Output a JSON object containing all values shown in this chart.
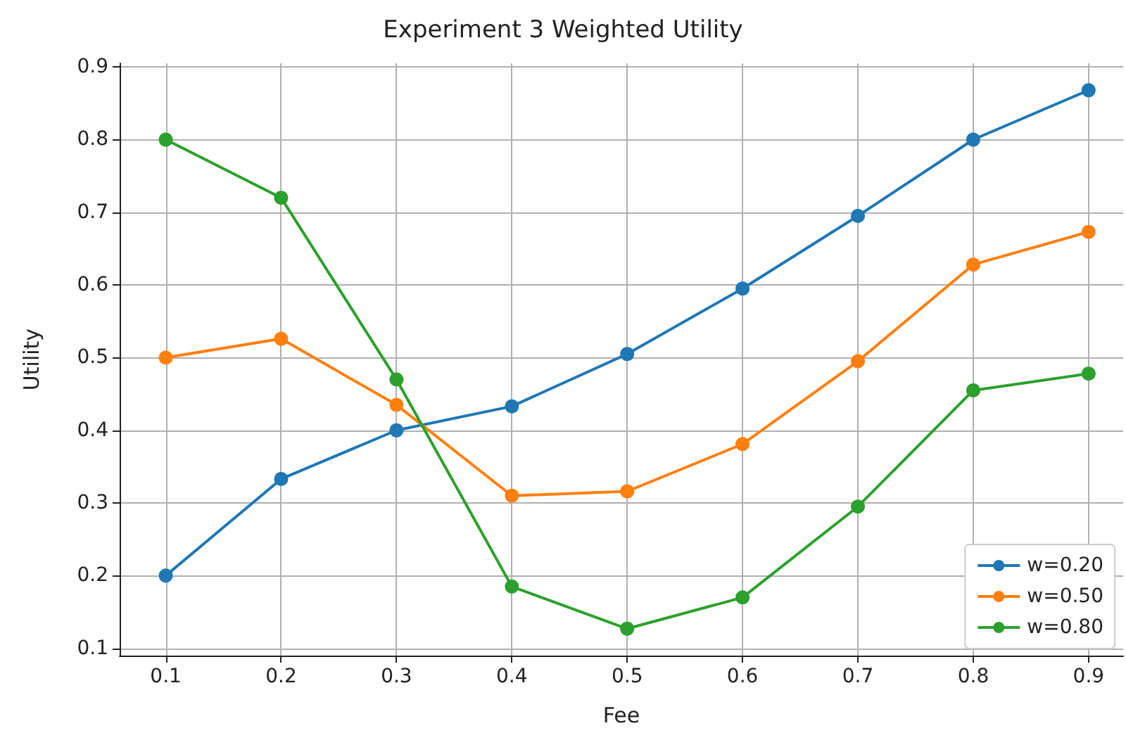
{
  "chart_data": {
    "type": "line",
    "title": "Experiment 3 Weighted Utility",
    "xlabel": "Fee",
    "ylabel": "Utility",
    "x": [
      0.1,
      0.2,
      0.3,
      0.4,
      0.5,
      0.6,
      0.7,
      0.8,
      0.9
    ],
    "series": [
      {
        "name": "w=0.20",
        "color": "#1f77b4",
        "values": [
          0.2,
          0.333,
          0.4,
          0.433,
          0.505,
          0.595,
          0.695,
          0.8,
          0.868
        ]
      },
      {
        "name": "w=0.50",
        "color": "#ff7f0e",
        "values": [
          0.5,
          0.526,
          0.435,
          0.31,
          0.316,
          0.381,
          0.495,
          0.628,
          0.673
        ]
      },
      {
        "name": "w=0.80",
        "color": "#2ca02c",
        "values": [
          0.8,
          0.72,
          0.47,
          0.185,
          0.127,
          0.17,
          0.295,
          0.455,
          0.478
        ]
      }
    ],
    "xlim": [
      0.06,
      0.93
    ],
    "xticks": [
      0.1,
      0.2,
      0.3,
      0.4,
      0.5,
      0.6,
      0.7,
      0.8,
      0.9
    ],
    "ylim": [
      0.09,
      0.905
    ],
    "yticks": [
      0.1,
      0.2,
      0.3,
      0.4,
      0.5,
      0.6,
      0.7,
      0.8,
      0.9
    ],
    "grid": true,
    "legend": "bottom right",
    "marker": "circle",
    "line_style": "solid"
  }
}
